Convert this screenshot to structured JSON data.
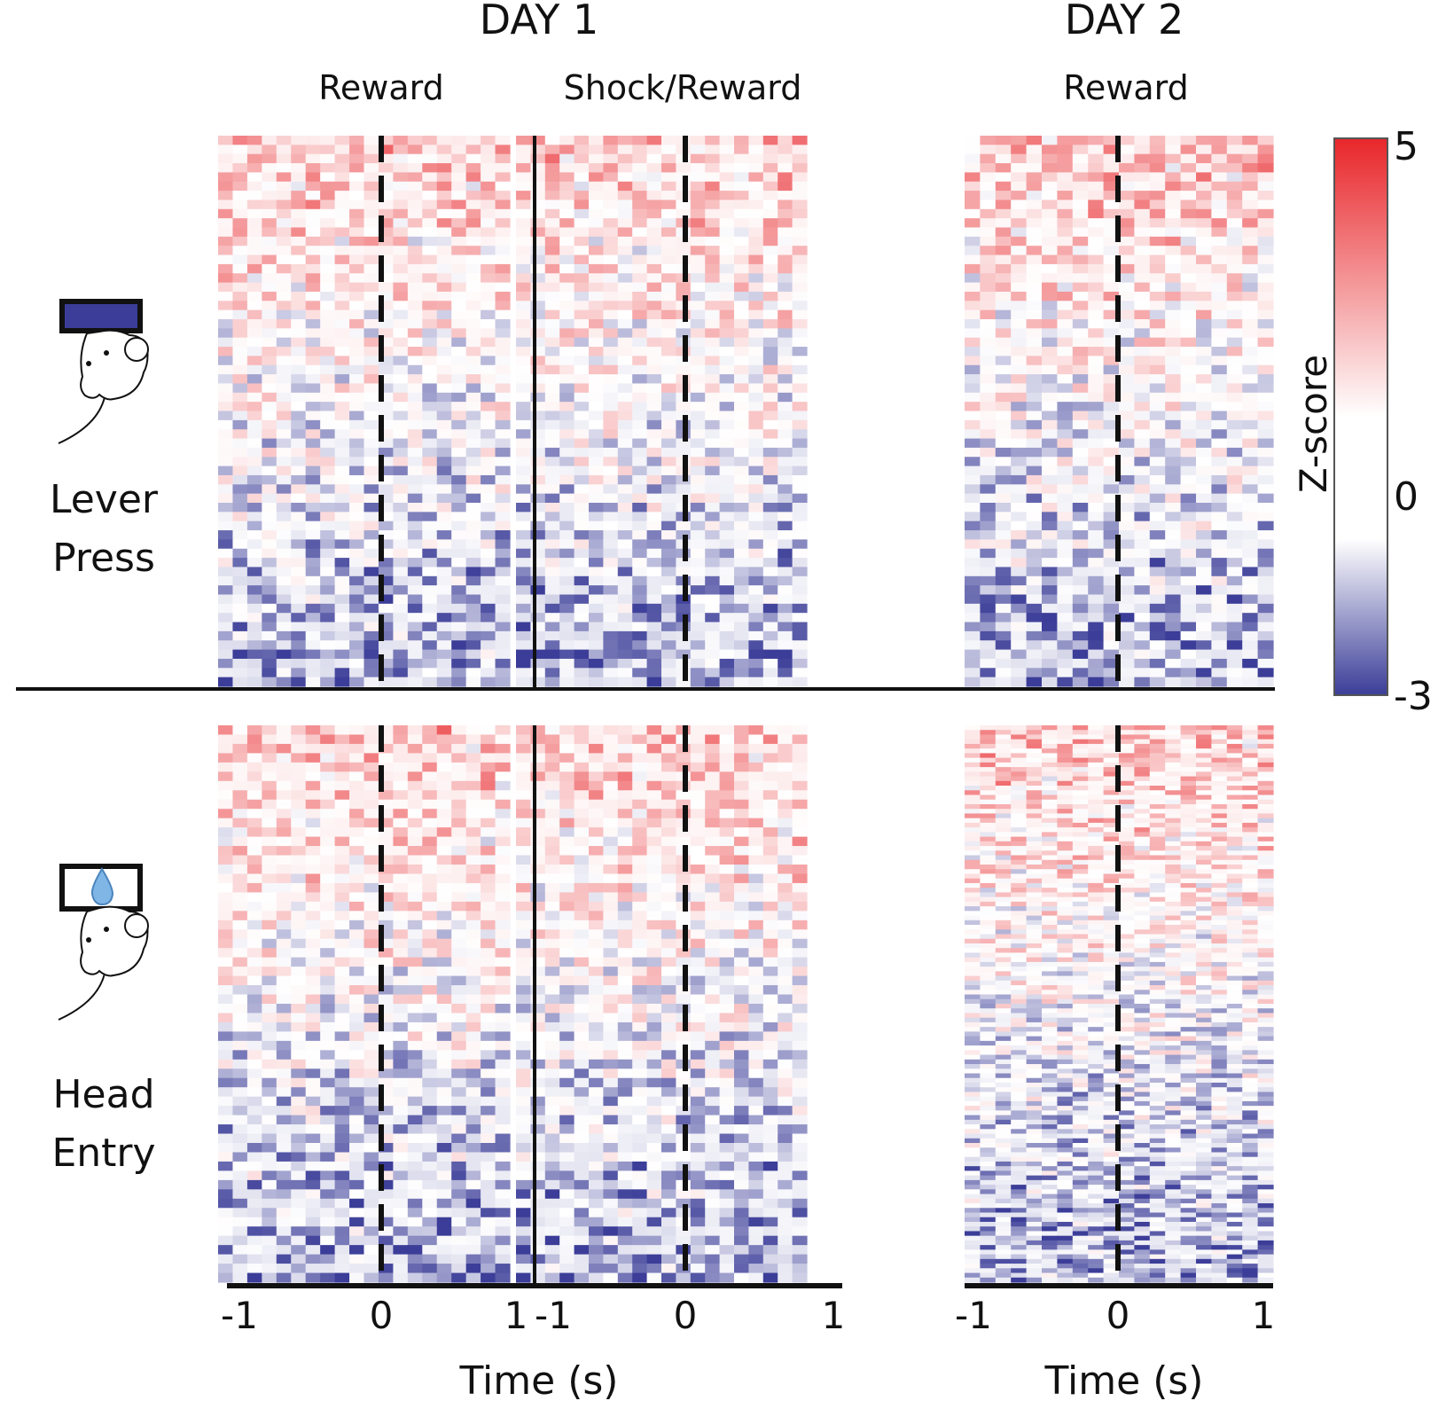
{
  "chart_data": {
    "type": "heatmap",
    "title": "",
    "day_headers": [
      "DAY 1",
      "DAY 2"
    ],
    "conditions": [
      {
        "id": "d1_reward",
        "day": "DAY 1",
        "label": "Reward"
      },
      {
        "id": "d1_shock",
        "day": "DAY 1",
        "label": "Shock/Reward"
      },
      {
        "id": "d2_reward",
        "day": "DAY 2",
        "label": "Reward"
      }
    ],
    "rows": [
      {
        "id": "lever",
        "label_lines": [
          "Lever",
          "Press"
        ],
        "icon": "mouse-lever-icon"
      },
      {
        "id": "head",
        "label_lines": [
          "Head",
          "Entry"
        ],
        "icon": "mouse-water-drop-icon"
      }
    ],
    "xlabel": "Time (s)",
    "xlim": [
      -1,
      1
    ],
    "event_time": 0,
    "x_tick_labels": [
      "-1",
      "0",
      "1"
    ],
    "time_bins": 20,
    "neurons_per_panel": {
      "lever": {
        "d1_reward": 60,
        "d1_shock": 60,
        "d2_reward": 60
      },
      "head": {
        "d1_reward": 60,
        "d1_shock": 60,
        "d2_reward": 120
      }
    },
    "sorting": "rows sorted by mean response (most excited at top, most inhibited at bottom)",
    "colorbar": {
      "label": "Z-score",
      "min": -3,
      "max": 5,
      "tick_labels": [
        "5",
        "0",
        "-3"
      ],
      "colors": {
        "high": "#e8262a",
        "zero": "#ffffff",
        "low": "#3b3d98"
      }
    }
  }
}
